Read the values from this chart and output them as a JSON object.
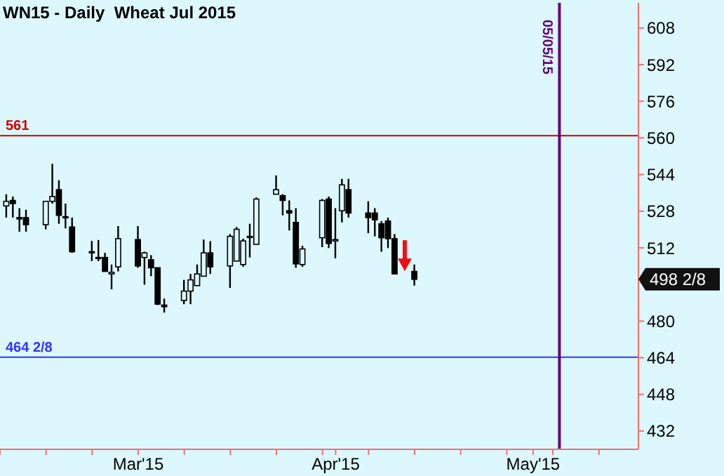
{
  "chart_data": {
    "type": "candlestick",
    "title": "WN15 - Daily  Wheat Jul 2015",
    "x": [
      "2015-02-10",
      "2015-02-11",
      "2015-02-12",
      "2015-02-13",
      "2015-02-16",
      "2015-02-17",
      "2015-02-18",
      "2015-02-19",
      "2015-02-20",
      "2015-02-23",
      "2015-02-24",
      "2015-02-25",
      "2015-02-26",
      "2015-02-27",
      "2015-03-02",
      "2015-03-03",
      "2015-03-04",
      "2015-03-05",
      "2015-03-06",
      "2015-03-09",
      "2015-03-10",
      "2015-03-11",
      "2015-03-12",
      "2015-03-13",
      "2015-03-16",
      "2015-03-17",
      "2015-03-18",
      "2015-03-19",
      "2015-03-20",
      "2015-03-23",
      "2015-03-24",
      "2015-03-25",
      "2015-03-26",
      "2015-03-27",
      "2015-03-30",
      "2015-03-31",
      "2015-04-01",
      "2015-04-02",
      "2015-04-03",
      "2015-04-06",
      "2015-04-07",
      "2015-04-08",
      "2015-04-09",
      "2015-04-10",
      "2015-04-13"
    ],
    "ohlc": [
      [
        530.3,
        535.4,
        525.2,
        532.3
      ],
      [
        532.7,
        534.4,
        525.2,
        531.3
      ],
      [
        525.2,
        529.3,
        519.0,
        524.6
      ],
      [
        525.2,
        528.6,
        519.0,
        522.1
      ],
      [
        522.1,
        532.3,
        520.1,
        532.3
      ],
      [
        532.3,
        548.7,
        531.3,
        534.4
      ],
      [
        537.4,
        541.5,
        522.5,
        526.2
      ],
      [
        525.6,
        531.3,
        520.5,
        525.6
      ],
      [
        521.1,
        525.2,
        509.8,
        510.3
      ],
      [
        510.3,
        515.0,
        506.2,
        509.8
      ],
      [
        507.8,
        515.4,
        506.2,
        507.8
      ],
      [
        507.8,
        509.8,
        501.7,
        501.7
      ],
      [
        500.6,
        504.7,
        493.9,
        501.3
      ],
      [
        503.7,
        521.5,
        501.7,
        516.0
      ],
      [
        515.6,
        521.5,
        503.3,
        504.1
      ],
      [
        507.8,
        510.3,
        495.9,
        509.8
      ],
      [
        506.8,
        508.8,
        499.6,
        503.3
      ],
      [
        503.3,
        503.3,
        487.0,
        487.4
      ],
      [
        487.0,
        489.8,
        483.7,
        486.3
      ],
      [
        489.0,
        498.0,
        487.4,
        493.1
      ],
      [
        493.1,
        500.6,
        487.4,
        498.0
      ],
      [
        495.5,
        504.7,
        495.5,
        500.6
      ],
      [
        499.6,
        515.6,
        499.6,
        509.8
      ],
      [
        509.8,
        514.9,
        500.6,
        503.7
      ],
      [
        504.1,
        518.0,
        494.5,
        517.0
      ],
      [
        506.2,
        521.1,
        506.2,
        520.1
      ],
      [
        504.7,
        516.0,
        503.7,
        515.0
      ],
      [
        517.0,
        522.5,
        507.8,
        517.0
      ],
      [
        513.5,
        534.0,
        513.5,
        533.3
      ],
      [
        535.4,
        543.6,
        535.4,
        537.4
      ],
      [
        534.8,
        535.4,
        526.2,
        532.7
      ],
      [
        528.2,
        532.7,
        519.6,
        527.2
      ],
      [
        523.1,
        529.3,
        503.3,
        505.0
      ],
      [
        504.7,
        512.9,
        503.7,
        511.5
      ],
      [
        516.4,
        533.3,
        512.3,
        532.7
      ],
      [
        533.3,
        534.4,
        511.9,
        513.9
      ],
      [
        515.0,
        529.3,
        507.4,
        515.6
      ],
      [
        528.2,
        542.1,
        523.1,
        539.5
      ],
      [
        537.4,
        542.1,
        525.2,
        527.2
      ],
      [
        527.2,
        532.3,
        518.4,
        525.2
      ],
      [
        527.2,
        529.3,
        517.0,
        524.2
      ],
      [
        522.5,
        523.7,
        510.3,
        516.4
      ],
      [
        523.7,
        525.2,
        511.9,
        516.0
      ],
      [
        516.0,
        518.0,
        500.6,
        500.6
      ],
      [
        501.7,
        504.7,
        495.5,
        498.25
      ]
    ],
    "color": "#000000",
    "xlim": [
      "2015-02-09",
      "2015-05-17"
    ],
    "xticks": [
      {
        "value": "2015-02-09",
        "label": null
      },
      {
        "value": "2015-02-16",
        "label": null
      },
      {
        "value": "2015-02-23",
        "label": null
      },
      {
        "value": "2015-03-02",
        "label": "Mar'15"
      },
      {
        "value": "2015-03-09",
        "label": null
      },
      {
        "value": "2015-03-16",
        "label": null
      },
      {
        "value": "2015-03-23",
        "label": null
      },
      {
        "value": "2015-03-30",
        "label": null
      },
      {
        "value": "2015-04-01",
        "label": "Apr'15"
      },
      {
        "value": "2015-04-06",
        "label": null
      },
      {
        "value": "2015-04-13",
        "label": null
      },
      {
        "value": "2015-04-20",
        "label": null
      },
      {
        "value": "2015-04-27",
        "label": null
      },
      {
        "value": "2015-05-01",
        "label": "May'15"
      },
      {
        "value": "2015-05-04",
        "label": null
      },
      {
        "value": "2015-05-11",
        "label": null
      }
    ],
    "ylim": [
      424,
      619
    ],
    "yticks": [
      432,
      448,
      464,
      480,
      512,
      528,
      544,
      560,
      576,
      592,
      608
    ],
    "ref_lines": [
      {
        "axis": "y",
        "value": 561,
        "label": "561",
        "color": "#cc0000"
      },
      {
        "axis": "y",
        "value": 464.25,
        "label": "464 2/8",
        "color": "#3333ff"
      },
      {
        "axis": "x",
        "value": "2015-05-05",
        "label": "05/05/15",
        "color": "#660077"
      }
    ],
    "annotations": [
      "498 2/8"
    ]
  }
}
